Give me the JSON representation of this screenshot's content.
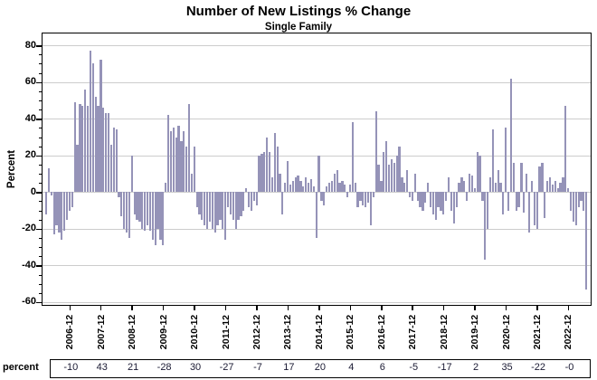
{
  "title": "Number of New Listings % Change",
  "subtitle": "Single Family",
  "y_axis": {
    "label": "Percent",
    "ticks": [
      80,
      60,
      40,
      20,
      0,
      -20,
      -40,
      -60
    ]
  },
  "x_axis": {
    "tick_labels": [
      "2006-12",
      "2007-12",
      "2008-12",
      "2009-12",
      "2010-12",
      "2011-12",
      "2012-12",
      "2013-12",
      "2014-12",
      "2015-12",
      "2016-12",
      "2017-12",
      "2018-12",
      "2019-12",
      "2020-12",
      "2021-12",
      "2022-12"
    ]
  },
  "table": {
    "row_label": "percent",
    "values": [
      "-10",
      "43",
      "21",
      "-28",
      "30",
      "-27",
      "-7",
      "17",
      "20",
      "4",
      "6",
      "-5",
      "-17",
      "2",
      "35",
      "-22",
      "-0"
    ]
  },
  "colors": {
    "bar": "#9593b8",
    "grid": "#cccccc",
    "axis": "#000000",
    "table_text": "#1a1a33"
  },
  "chart_data": {
    "type": "bar",
    "title": "Number of New Listings % Change",
    "subtitle": "Single Family",
    "ylabel": "Percent",
    "ylim": [
      -60,
      80
    ],
    "y_grid_step": 20,
    "grid": true,
    "legend": false,
    "x_start_month": "2006-03",
    "x_end_month": "2023-07",
    "x_tick_labels": [
      "2006-12",
      "2007-12",
      "2008-12",
      "2009-12",
      "2010-12",
      "2011-12",
      "2012-12",
      "2013-12",
      "2014-12",
      "2015-12",
      "2016-12",
      "2017-12",
      "2018-12",
      "2019-12",
      "2020-12",
      "2021-12",
      "2022-12"
    ],
    "december_first_index": 9,
    "december_step": 12,
    "annual_percent_change": [
      -10,
      43,
      21,
      -28,
      30,
      -27,
      -7,
      17,
      20,
      4,
      6,
      -5,
      -17,
      2,
      35,
      -22,
      0
    ],
    "values": [
      -12,
      13,
      -2,
      -23,
      -18,
      -22,
      -26,
      -21,
      -15,
      -10,
      -8,
      49,
      26,
      48,
      47,
      56,
      47,
      77,
      70,
      52,
      47,
      72,
      46,
      43,
      43,
      26,
      35,
      34,
      -3,
      -13,
      -20,
      -22,
      -25,
      20,
      -12,
      -15,
      -16,
      -20,
      -21,
      -18,
      -21,
      -26,
      -29,
      -20,
      -26,
      -29,
      5,
      42,
      33,
      35,
      30,
      36,
      28,
      33,
      25,
      48,
      10,
      25,
      -8,
      -12,
      -15,
      -18,
      -20,
      -16,
      -20,
      -22,
      -18,
      -15,
      -20,
      -26,
      -8,
      -12,
      -15,
      -20,
      -15,
      -13,
      -10,
      2,
      -8,
      -10,
      -5,
      -7,
      20,
      21,
      22,
      30,
      22,
      8,
      32,
      25,
      10,
      -12,
      5,
      17,
      4,
      6,
      8,
      9,
      6,
      3,
      8,
      5,
      7,
      3,
      -25,
      20,
      -5,
      -7,
      3,
      5,
      6,
      10,
      12,
      5,
      6,
      4,
      -3,
      4,
      38,
      5,
      -8,
      -5,
      -7,
      -8,
      -6,
      -18,
      -3,
      44,
      15,
      6,
      22,
      28,
      15,
      18,
      16,
      20,
      25,
      8,
      5,
      12,
      -3,
      -5,
      10,
      -5,
      -8,
      -10,
      -6,
      5,
      -8,
      -12,
      -15,
      -8,
      -10,
      -12,
      -5,
      8,
      -10,
      -17,
      -8,
      5,
      8,
      6,
      -5,
      10,
      9,
      2,
      22,
      20,
      -5,
      -37,
      -20,
      8,
      34,
      5,
      12,
      5,
      -12,
      35,
      -10,
      62,
      16,
      -10,
      -8,
      16,
      -11,
      10,
      -22,
      6,
      -18,
      -20,
      14,
      16,
      -14,
      6,
      8,
      4,
      6,
      2,
      5,
      8,
      47,
      2,
      -10,
      -16,
      -18,
      -8,
      -5,
      -10,
      -53
    ]
  }
}
